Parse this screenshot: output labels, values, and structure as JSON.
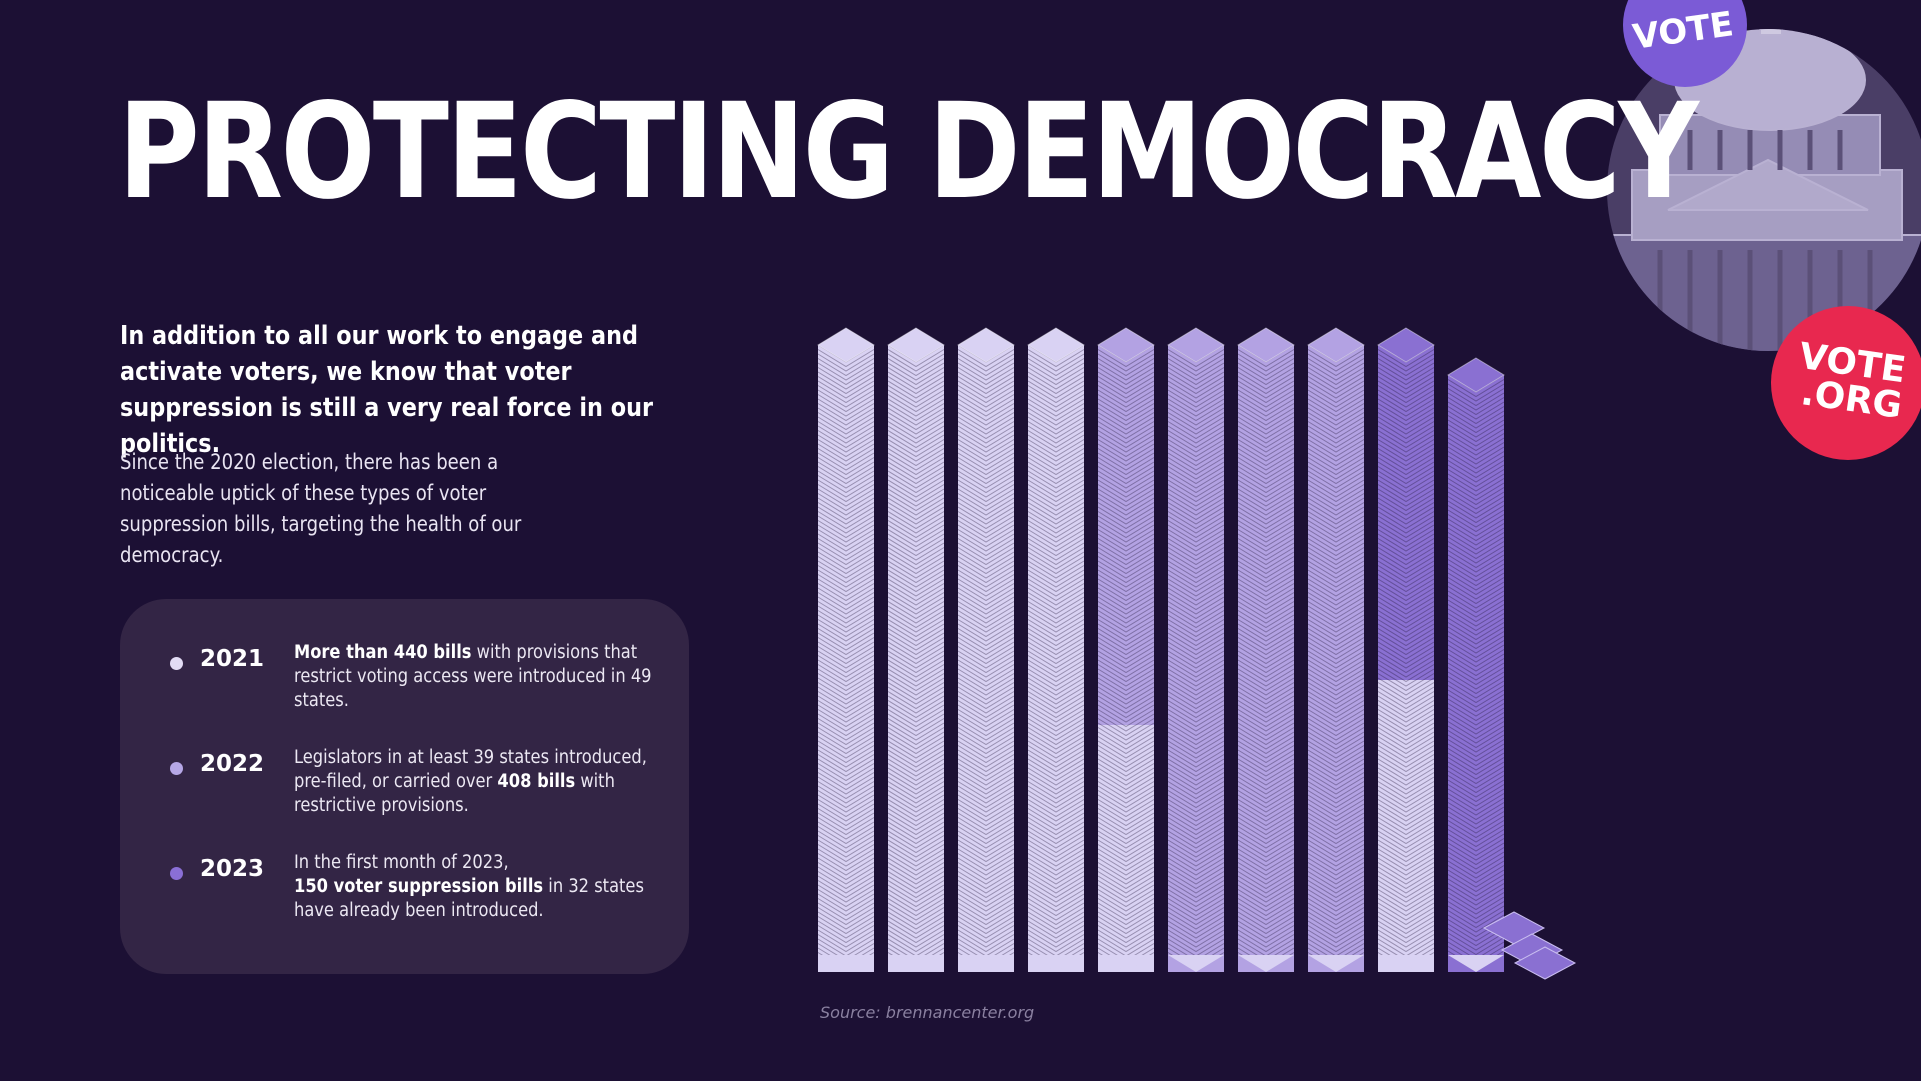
{
  "title": "PROTECTING DEMOCRACY",
  "lead": "In addition to all our work to engage and activate voters, we know that voter suppression is still a very real force in our politics.",
  "body": "Since the 2020 election, there has been a noticeable uptick of these types of voter suppression bills, targeting the health of our democracy.",
  "timeline": [
    {
      "year": "2021",
      "bullet_color": "#e3dcf5",
      "parts": [
        {
          "text": "More than 440 bills",
          "bold": true
        },
        {
          "text": " with provisions that restrict voting access were introduced in 49 states.",
          "bold": false
        }
      ]
    },
    {
      "year": "2022",
      "bullet_color": "#b6a7e6",
      "parts": [
        {
          "text": "Legislators in at least 39 states introduced, pre-filed, or carried over ",
          "bold": false
        },
        {
          "text": "408 bills",
          "bold": true
        },
        {
          "text": " with restrictive provisions.",
          "bold": false
        }
      ]
    },
    {
      "year": "2023",
      "bullet_color": "#8a6fd6",
      "parts": [
        {
          "text": "In the first month of 2023,\n",
          "bold": false
        },
        {
          "text": "150 voter suppression bills",
          "bold": true
        },
        {
          "text": " in 32 states have already been introduced.",
          "bold": false
        }
      ]
    }
  ],
  "source": "Source: brennancenter.org",
  "badges": {
    "vote_small": "VOTE",
    "vote_org_line1": "VOTE",
    "vote_org_line2": ".ORG"
  },
  "colors": {
    "background": "#1c1034",
    "panel": "#332545",
    "bills_2021": "#d9d2f3",
    "bills_2022": "#b3a2e3",
    "bills_2023": "#8a70d2",
    "badge_purple": "#7b5bd6",
    "badge_red": "#e8284f"
  },
  "chart_data": {
    "type": "stacked bill columns",
    "series": [
      {
        "name": "2021",
        "value": 440
      },
      {
        "name": "2022",
        "value": 408
      },
      {
        "name": "2023",
        "value": 150
      }
    ]
  }
}
